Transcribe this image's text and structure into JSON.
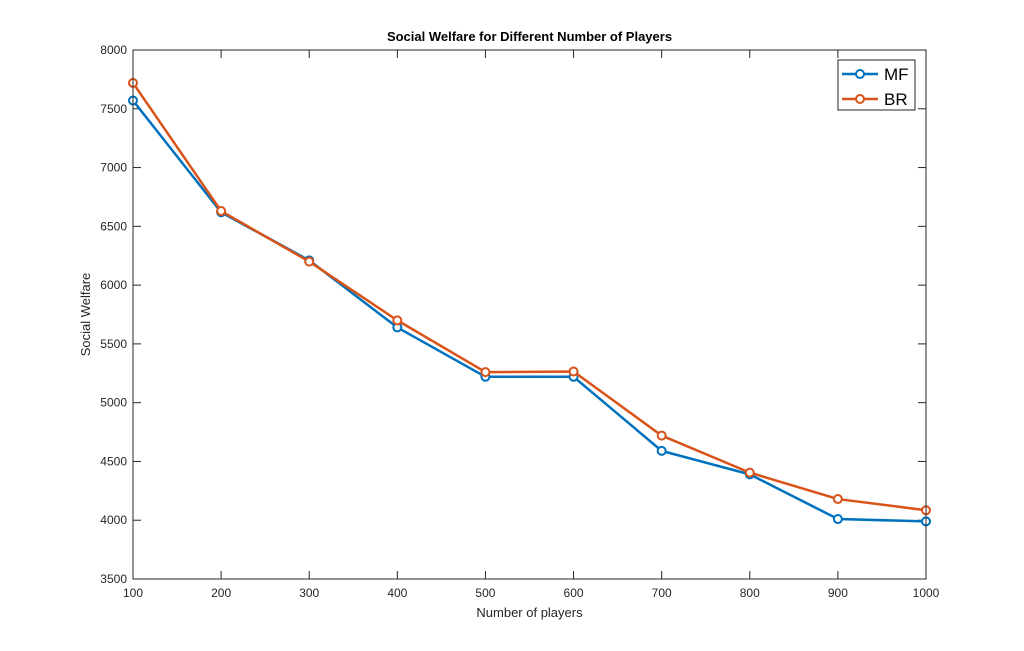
{
  "chart_data": {
    "type": "line",
    "title": "Social Welfare for Different Number of Players",
    "xlabel": "Number of players",
    "ylabel": "Social Welfare",
    "x": [
      100,
      200,
      300,
      400,
      500,
      600,
      700,
      800,
      900,
      1000
    ],
    "xlim": [
      100,
      1000
    ],
    "ylim": [
      3500,
      8000
    ],
    "xticks": [
      "100",
      "200",
      "300",
      "400",
      "500",
      "600",
      "700",
      "800",
      "900",
      "1000"
    ],
    "yticks": [
      "3500",
      "4000",
      "4500",
      "5000",
      "5500",
      "6000",
      "6500",
      "7000",
      "7500",
      "8000"
    ],
    "grid": false,
    "legend_position": "top-right",
    "series": [
      {
        "name": "MF",
        "color": "#0072BD",
        "marker": "circle",
        "values": [
          7570,
          6620,
          6210,
          5640,
          5220,
          5220,
          4590,
          4390,
          4010,
          3990
        ]
      },
      {
        "name": "BR",
        "color": "#D95319",
        "marker": "circle",
        "values": [
          7720,
          6630,
          6200,
          5700,
          5260,
          5265,
          4720,
          4405,
          4180,
          4085
        ]
      }
    ]
  }
}
